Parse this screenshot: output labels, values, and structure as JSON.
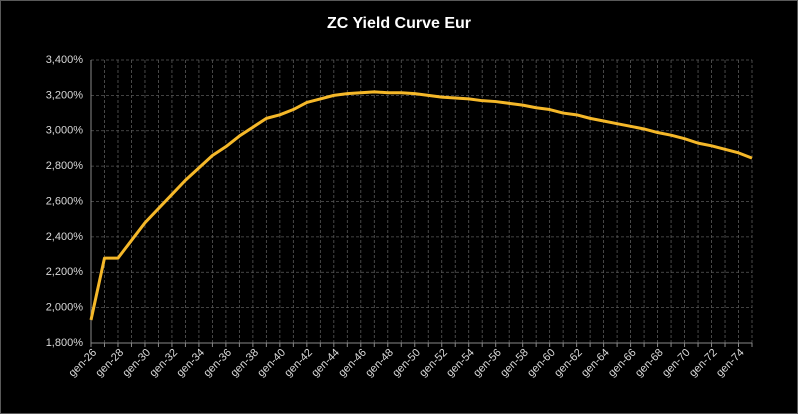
{
  "chart_data": {
    "type": "line",
    "title": "ZC Yield Curve Eur",
    "categories": [
      "gen-26",
      null,
      "gen-28",
      null,
      "gen-30",
      null,
      "gen-32",
      null,
      "gen-34",
      null,
      "gen-36",
      null,
      "gen-38",
      null,
      "gen-40",
      null,
      "gen-42",
      null,
      "gen-44",
      null,
      "gen-46",
      null,
      "gen-48",
      null,
      "gen-50",
      null,
      "gen-52",
      null,
      "gen-54",
      null,
      "gen-56",
      null,
      "gen-58",
      null,
      "gen-60",
      null,
      "gen-62",
      null,
      "gen-64",
      null,
      "gen-66",
      null,
      "gen-68",
      null,
      "gen-70",
      null,
      "gen-72",
      null,
      "gen-74",
      null
    ],
    "values": [
      1.93,
      2.28,
      2.28,
      2.38,
      2.48,
      2.56,
      2.64,
      2.72,
      2.79,
      2.86,
      2.91,
      2.97,
      3.02,
      3.07,
      3.09,
      3.12,
      3.16,
      3.18,
      3.2,
      3.21,
      3.215,
      3.22,
      3.215,
      3.215,
      3.21,
      3.2,
      3.19,
      3.185,
      3.18,
      3.17,
      3.165,
      3.155,
      3.145,
      3.13,
      3.12,
      3.1,
      3.09,
      3.07,
      3.055,
      3.04,
      3.025,
      3.01,
      2.99,
      2.975,
      2.955,
      2.93,
      2.915,
      2.895,
      2.875,
      2.845
    ],
    "color": "#f5b829",
    "ylim": [
      1.8,
      3.4
    ],
    "yticks": [
      {
        "value": 1.8,
        "label": "1,800%"
      },
      {
        "value": 2.0,
        "label": "2,000%"
      },
      {
        "value": 2.2,
        "label": "2,200%"
      },
      {
        "value": 2.4,
        "label": "2,400%"
      },
      {
        "value": 2.6,
        "label": "2,600%"
      },
      {
        "value": 2.8,
        "label": "2,800%"
      },
      {
        "value": 3.0,
        "label": "3,000%"
      },
      {
        "value": 3.2,
        "label": "3,200%"
      },
      {
        "value": 3.4,
        "label": "3,400%"
      }
    ],
    "grid": true
  }
}
